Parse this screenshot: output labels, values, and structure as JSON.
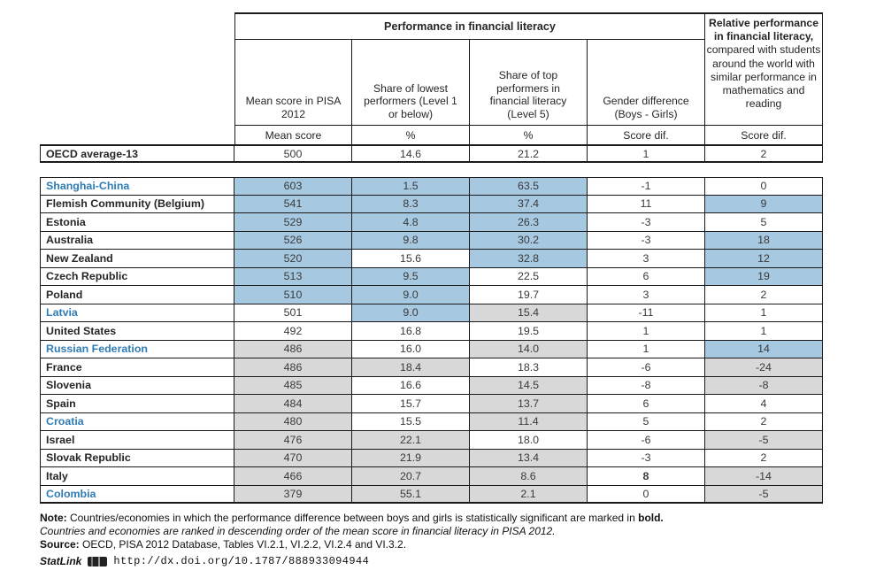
{
  "colors": {
    "highlight_blue": "#a6c8e1",
    "highlight_gray": "#d8d8d8",
    "partner_text_blue": "#2f7cb5",
    "border_black": "#1a1a1a",
    "text_dark": "#262626",
    "value_text": "#3a3a3a"
  },
  "table": {
    "header": {
      "performance_title": "Performance in financial literacy",
      "relative_title_bold": "Relative performance in financial literacy,",
      "relative_title_rest": " compared with students around the world with similar performance in mathematics and reading",
      "columns": [
        "Mean score in PISA 2012",
        "Share of lowest performers (Level 1 or below)",
        "Share of top performers in financial literacy (Level 5)",
        "Gender difference (Boys - Girls)"
      ],
      "subheaders": [
        "Mean score",
        "%",
        "%",
        "Score dif.",
        "Score dif."
      ]
    },
    "oecd_row": {
      "label": "OECD average-13",
      "values": [
        "500",
        "14.6",
        "21.2",
        "1",
        "2"
      ]
    },
    "rows": [
      {
        "name": "Shanghai-China",
        "partner": true,
        "values": [
          "603",
          "1.5",
          "63.5",
          "-1",
          "0"
        ],
        "bg": [
          "b",
          "b",
          "b",
          "w",
          "w"
        ]
      },
      {
        "name": "Flemish Community (Belgium)",
        "partner": false,
        "values": [
          "541",
          "8.3",
          "37.4",
          "11",
          "9"
        ],
        "bg": [
          "b",
          "b",
          "b",
          "w",
          "b"
        ]
      },
      {
        "name": "Estonia",
        "partner": false,
        "values": [
          "529",
          "4.8",
          "26.3",
          "-3",
          "5"
        ],
        "bg": [
          "b",
          "b",
          "b",
          "w",
          "w"
        ]
      },
      {
        "name": "Australia",
        "partner": false,
        "values": [
          "526",
          "9.8",
          "30.2",
          "-3",
          "18"
        ],
        "bg": [
          "b",
          "b",
          "b",
          "w",
          "b"
        ]
      },
      {
        "name": "New Zealand",
        "partner": false,
        "values": [
          "520",
          "15.6",
          "32.8",
          "3",
          "12"
        ],
        "bg": [
          "b",
          "w",
          "b",
          "w",
          "b"
        ]
      },
      {
        "name": "Czech Republic",
        "partner": false,
        "values": [
          "513",
          "9.5",
          "22.5",
          "6",
          "19"
        ],
        "bg": [
          "b",
          "b",
          "w",
          "w",
          "b"
        ]
      },
      {
        "name": "Poland",
        "partner": false,
        "values": [
          "510",
          "9.0",
          "19.7",
          "3",
          "2"
        ],
        "bg": [
          "b",
          "b",
          "w",
          "w",
          "w"
        ]
      },
      {
        "name": "Latvia",
        "partner": true,
        "values": [
          "501",
          "9.0",
          "15.4",
          "-11",
          "1"
        ],
        "bg": [
          "w",
          "b",
          "g",
          "w",
          "w"
        ]
      },
      {
        "name": "United States",
        "partner": false,
        "values": [
          "492",
          "16.8",
          "19.5",
          "1",
          "1"
        ],
        "bg": [
          "w",
          "w",
          "w",
          "w",
          "w"
        ]
      },
      {
        "name": "Russian Federation",
        "partner": true,
        "values": [
          "486",
          "16.0",
          "14.0",
          "1",
          "14"
        ],
        "bg": [
          "g",
          "w",
          "g",
          "w",
          "b"
        ]
      },
      {
        "name": "France",
        "partner": false,
        "values": [
          "486",
          "18.4",
          "18.3",
          "-6",
          "-24"
        ],
        "bg": [
          "g",
          "g",
          "w",
          "w",
          "g"
        ]
      },
      {
        "name": "Slovenia",
        "partner": false,
        "values": [
          "485",
          "16.6",
          "14.5",
          "-8",
          "-8"
        ],
        "bg": [
          "g",
          "w",
          "g",
          "w",
          "g"
        ]
      },
      {
        "name": "Spain",
        "partner": false,
        "values": [
          "484",
          "15.7",
          "13.7",
          "6",
          "4"
        ],
        "bg": [
          "g",
          "w",
          "g",
          "w",
          "w"
        ]
      },
      {
        "name": "Croatia",
        "partner": true,
        "values": [
          "480",
          "15.5",
          "11.4",
          "5",
          "2"
        ],
        "bg": [
          "g",
          "w",
          "g",
          "w",
          "w"
        ]
      },
      {
        "name": "Israel",
        "partner": false,
        "values": [
          "476",
          "22.1",
          "18.0",
          "-6",
          "-5"
        ],
        "bg": [
          "g",
          "g",
          "w",
          "w",
          "g"
        ]
      },
      {
        "name": "Slovak Republic",
        "partner": false,
        "values": [
          "470",
          "21.9",
          "13.4",
          "-3",
          "2"
        ],
        "bg": [
          "g",
          "g",
          "g",
          "w",
          "w"
        ]
      },
      {
        "name": "Italy",
        "partner": false,
        "values": [
          "466",
          "20.7",
          "8.6",
          "8",
          "-14"
        ],
        "bg": [
          "g",
          "g",
          "g",
          "w",
          "g"
        ],
        "bold_gender": true
      },
      {
        "name": "Colombia",
        "partner": true,
        "values": [
          "379",
          "55.1",
          "2.1",
          "0",
          "-5"
        ],
        "bg": [
          "g",
          "g",
          "g",
          "w",
          "g"
        ]
      }
    ]
  },
  "footer": {
    "note_label": "Note:",
    "note_text": " Countries/economies in which the performance difference between boys and girls is statistically significant are marked in ",
    "note_bold_word": "bold.",
    "ranking_note": "Countries and economies are ranked in descending order of the mean score in financial literacy in PISA 2012.",
    "source_label": "Source:",
    "source_text": " OECD, PISA 2012 Database, Tables VI.2.1, VI.2.2, VI.2.4 and VI.3.2.",
    "statlink_label": "StatLink",
    "statlink_url": "http://dx.doi.org/10.1787/888933094944"
  }
}
